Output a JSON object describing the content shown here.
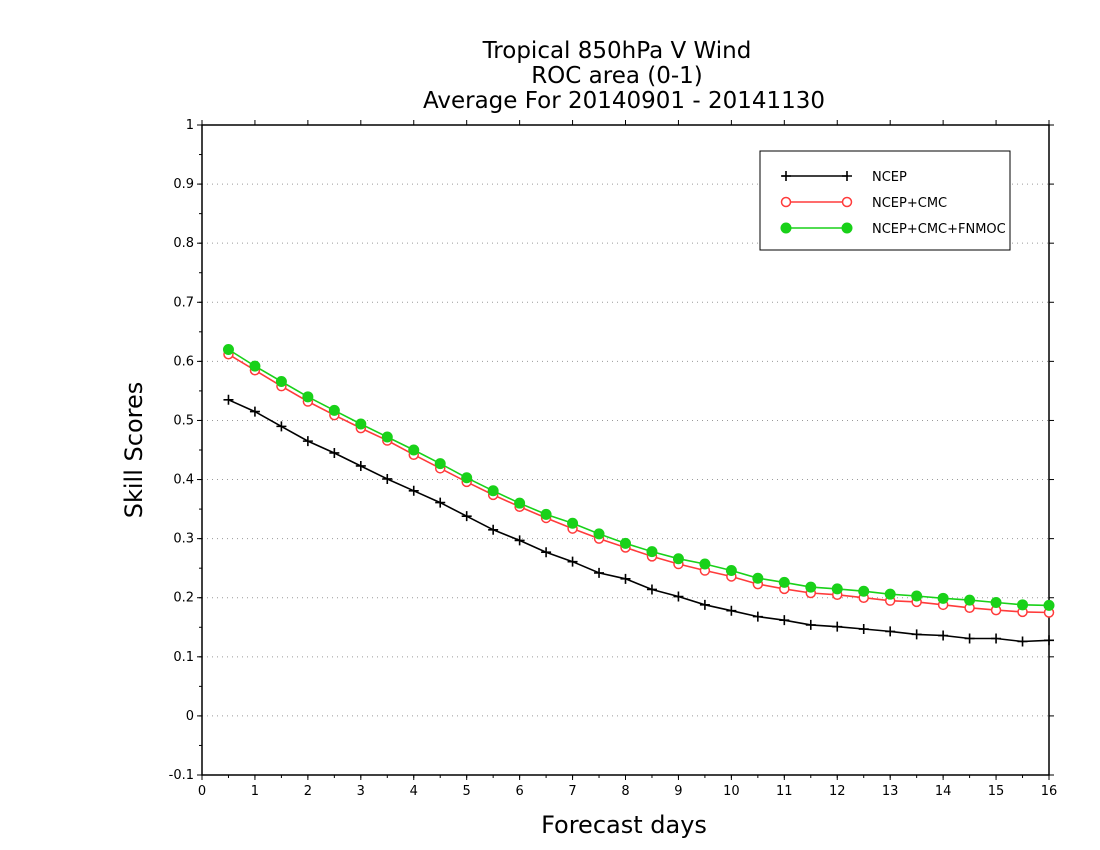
{
  "chart_data": {
    "type": "line",
    "title": [
      "Tropical 850hPa V Wind",
      "ROC area (0-1)",
      "Average For 20140901 - 20141130"
    ],
    "xlabel": "Forecast days",
    "ylabel": "Skill Scores",
    "xlim": [
      0,
      16
    ],
    "ylim": [
      -0.1,
      1
    ],
    "xticks": [
      0,
      1,
      2,
      3,
      4,
      5,
      6,
      7,
      8,
      9,
      10,
      11,
      12,
      13,
      14,
      15,
      16
    ],
    "yticks": [
      -0.1,
      0,
      0.1,
      0.2,
      0.3,
      0.4,
      0.5,
      0.6,
      0.7,
      0.8,
      0.9,
      1
    ],
    "ytick_labels": [
      "-0.1",
      "0",
      "0.1",
      "0.2",
      "0.3",
      "0.4",
      "0.5",
      "0.6",
      "0.7",
      "0.8",
      "0.9",
      "1"
    ],
    "grid": "horizontal dotted",
    "legend_position": "top-right",
    "x": [
      0.5,
      1,
      1.5,
      2,
      2.5,
      3,
      3.5,
      4,
      4.5,
      5,
      5.5,
      6,
      6.5,
      7,
      7.5,
      8,
      8.5,
      9,
      9.5,
      10,
      10.5,
      11,
      11.5,
      12,
      12.5,
      13,
      13.5,
      14,
      14.5,
      15,
      15.5,
      16
    ],
    "series": [
      {
        "name": "NCEP",
        "color": "#000000",
        "marker": "plus",
        "values": [
          0.535,
          0.515,
          0.49,
          0.465,
          0.445,
          0.423,
          0.401,
          0.381,
          0.361,
          0.338,
          0.315,
          0.297,
          0.277,
          0.261,
          0.242,
          0.232,
          0.214,
          0.202,
          0.188,
          0.178,
          0.168,
          0.162,
          0.154,
          0.151,
          0.147,
          0.143,
          0.138,
          0.136,
          0.131,
          0.131,
          0.126,
          0.128
        ]
      },
      {
        "name": "NCEP+CMC",
        "color": "#ff3b3b",
        "marker": "open-circle",
        "values": [
          0.612,
          0.585,
          0.558,
          0.532,
          0.509,
          0.487,
          0.466,
          0.442,
          0.419,
          0.396,
          0.374,
          0.354,
          0.335,
          0.317,
          0.3,
          0.285,
          0.27,
          0.257,
          0.246,
          0.236,
          0.223,
          0.215,
          0.208,
          0.205,
          0.2,
          0.195,
          0.193,
          0.188,
          0.183,
          0.179,
          0.176,
          0.175
        ]
      },
      {
        "name": "NCEP+CMC+FNMOC",
        "color": "#19d119",
        "marker": "filled-circle",
        "values": [
          0.62,
          0.592,
          0.566,
          0.54,
          0.517,
          0.494,
          0.472,
          0.45,
          0.427,
          0.403,
          0.381,
          0.36,
          0.341,
          0.326,
          0.308,
          0.292,
          0.278,
          0.266,
          0.257,
          0.246,
          0.233,
          0.226,
          0.218,
          0.215,
          0.211,
          0.206,
          0.203,
          0.199,
          0.196,
          0.192,
          0.188,
          0.187
        ]
      }
    ]
  }
}
